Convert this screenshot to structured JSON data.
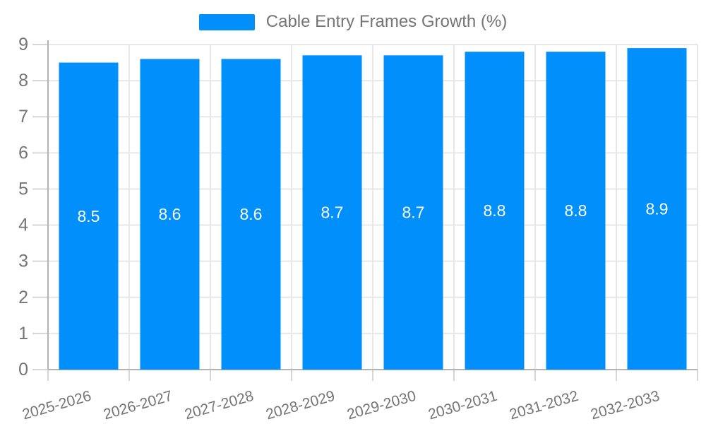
{
  "legend": {
    "position": "top",
    "swatch_color": "#008FFB",
    "label": "Cable Entry Frames Growth (%)"
  },
  "chart_data": {
    "type": "bar",
    "title": "Cable Entry Frames Growth (%)",
    "series_name": "Cable Entry Frames Growth (%)",
    "categories": [
      "2025-2026",
      "2026-2027",
      "2027-2028",
      "2028-2029",
      "2029-2030",
      "2030-2031",
      "2031-2032",
      "2032-2033"
    ],
    "values": [
      8.5,
      8.6,
      8.6,
      8.7,
      8.7,
      8.8,
      8.8,
      8.9
    ],
    "value_labels": [
      "8.5",
      "8.6",
      "8.6",
      "8.7",
      "8.7",
      "8.8",
      "8.8",
      "8.9"
    ],
    "xlabel": "",
    "ylabel": "",
    "ylim": [
      0,
      9
    ],
    "yticks": [
      0,
      1,
      2,
      3,
      4,
      5,
      6,
      7,
      8,
      9
    ],
    "grid": true,
    "legend_position": "top",
    "x_label_rotation_deg": -16,
    "colors": {
      "bar": "#008FFB",
      "value_label": "#ffffff",
      "axis_label": "#757575",
      "gridline": "#e7e7e7",
      "tick": "#d6d6d6",
      "axis_line": "#b3b3b3"
    }
  }
}
